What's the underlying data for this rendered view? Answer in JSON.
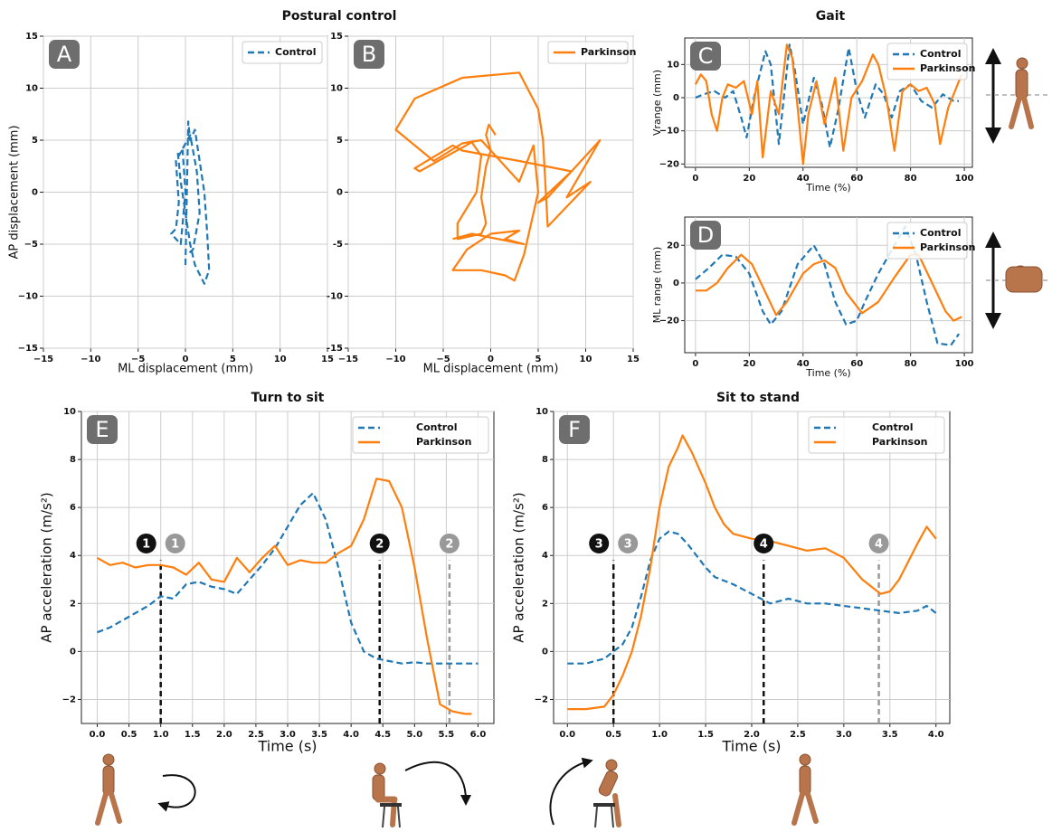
{
  "section_titles": [
    "Postural control",
    "Gait",
    "Turn to sit",
    "Sit to stand"
  ],
  "chart_data": [
    {
      "type": "line",
      "panel": "A",
      "x_label": "ML displacement (mm)",
      "y_label": "AP displacement (mm)",
      "xlim": [
        -15,
        15
      ],
      "ylim": [
        -15,
        15
      ],
      "xticks": [
        {
          "value": -15,
          "label": "−15"
        },
        {
          "value": -10,
          "label": "−10"
        },
        {
          "value": -5,
          "label": "−5"
        },
        0,
        5,
        10,
        15
      ],
      "yticks": [
        {
          "value": -15,
          "label": "−15"
        },
        {
          "value": -10,
          "label": "−10"
        },
        {
          "value": -5,
          "label": "−5"
        },
        0,
        5,
        10,
        15
      ],
      "grid": true,
      "legend": "upper right",
      "series": [
        {
          "name": "Control",
          "color": "#1f77b4",
          "dash": true,
          "x": [
            0,
            0.3,
            0.5,
            1,
            1.5,
            2,
            2.3,
            2.5,
            2,
            1,
            0.5,
            0,
            -0.5,
            -0.8,
            -0.3,
            0,
            -0.5,
            -1.5,
            -1,
            -0.7,
            -1,
            0.5,
            1.2,
            1.5,
            0.8,
            0.2
          ],
          "values": [
            -7,
            6.8,
            5,
            6,
            3,
            0,
            -4,
            -7.5,
            -8.8,
            -7,
            -5,
            -2,
            1,
            3.8,
            4,
            0,
            -5,
            -4,
            -3.5,
            -1,
            3,
            5.5,
            2,
            -2,
            -5.5,
            -6
          ]
        }
      ]
    },
    {
      "type": "line",
      "panel": "B",
      "x_label": "ML displacement (mm)",
      "xlim": [
        -15,
        15
      ],
      "ylim": [
        -15,
        15
      ],
      "xticks": [
        {
          "value": -15,
          "label": "−15"
        },
        {
          "value": -10,
          "label": "−10"
        },
        {
          "value": -5,
          "label": "−5"
        },
        0,
        5,
        10,
        15
      ],
      "yticks": [
        -15,
        -10,
        -5,
        0,
        5,
        10,
        15
      ],
      "grid": true,
      "legend": "upper right",
      "series": [
        {
          "name": "Parkinson",
          "color": "#ff7f0e",
          "dash": false,
          "x": [
            0.5,
            -0.2,
            -0.5,
            0,
            -0.5,
            -1,
            -0.5,
            -1,
            -3.5,
            -3.5,
            -1.5,
            -1,
            -2,
            -7.5,
            -8,
            -4,
            -3,
            3,
            8.5,
            5,
            6,
            11.5,
            8,
            10.5,
            6,
            5.5,
            5,
            3,
            -3,
            -8,
            -10,
            -6,
            -3,
            -1,
            0.5,
            3,
            4.5,
            5,
            4.5,
            3.5,
            2.5,
            1.5,
            -1,
            -4,
            -2.5,
            0,
            3,
            1.5,
            3.5,
            -2,
            -4
          ],
          "values": [
            5.5,
            6.5,
            5.5,
            4,
            2.5,
            -0.5,
            -3,
            -4,
            -4.5,
            -3,
            0,
            3.5,
            4.8,
            2,
            2.3,
            4.5,
            4,
            3,
            2,
            -1,
            -0.5,
            5,
            -0.5,
            1,
            -3.3,
            5,
            8,
            11.5,
            11,
            9,
            6,
            3,
            4.7,
            5,
            3.5,
            1,
            4.5,
            0,
            -2,
            -6,
            -8.5,
            -8,
            -7.5,
            -7.5,
            -5.5,
            -4,
            -3.7,
            -4.5,
            -5,
            -4,
            -4.5
          ]
        }
      ]
    },
    {
      "type": "line",
      "panel": "C",
      "x_label": "Time (%)",
      "y_label": "Vrange (mm)",
      "xlim": [
        -4,
        103
      ],
      "ylim": [
        -21,
        18
      ],
      "xticks": [
        0,
        20,
        40,
        60,
        80,
        100
      ],
      "yticks": [
        {
          "value": -20,
          "label": "−20"
        },
        {
          "value": -10,
          "label": "−10"
        },
        0,
        10
      ],
      "grid": true,
      "legend": "upper right",
      "series": [
        {
          "name": "Control",
          "color": "#1f77b4",
          "dash": true,
          "x": [
            0,
            3,
            7,
            11,
            14,
            17,
            19,
            22,
            26,
            28,
            31,
            35,
            37,
            40,
            44,
            47,
            50,
            53,
            57,
            60,
            63,
            67,
            70,
            73,
            76,
            80,
            84,
            88,
            92,
            96,
            98
          ],
          "values": [
            0,
            1,
            2,
            0,
            2,
            -6,
            -12,
            1,
            14,
            10,
            -14,
            16,
            8,
            -8,
            6,
            -2,
            -15,
            -4,
            15,
            2,
            -6,
            4,
            1,
            -6,
            2,
            4,
            -1,
            -3,
            1,
            -1,
            -1
          ]
        },
        {
          "name": "Parkinson",
          "color": "#ff7f0e",
          "dash": false,
          "x": [
            0,
            2,
            4,
            6,
            8,
            10,
            12,
            15,
            18,
            21,
            23,
            25,
            28,
            31,
            34,
            36,
            38,
            40,
            42,
            45,
            48,
            52,
            55,
            58,
            62,
            66,
            68,
            71,
            74,
            77,
            80,
            83,
            86,
            89,
            91,
            94,
            97,
            99
          ],
          "values": [
            4,
            7,
            5,
            -5,
            -10,
            0,
            4,
            3,
            5,
            -5,
            5,
            -18,
            2,
            -5,
            16,
            12,
            -3,
            -20,
            -5,
            5,
            -8,
            6,
            -16,
            0,
            5,
            13,
            10,
            0,
            -16,
            2,
            4,
            2,
            3,
            -2,
            -14,
            -3,
            3,
            7
          ]
        }
      ]
    },
    {
      "type": "line",
      "panel": "D",
      "x_label": "Time (%)",
      "y_label": "ML range (mm)",
      "xlim": [
        -4,
        103
      ],
      "ylim": [
        -37,
        35
      ],
      "xticks": [
        0,
        20,
        40,
        60,
        80,
        100
      ],
      "yticks": [
        {
          "value": -20,
          "label": "−20"
        },
        0,
        20
      ],
      "grid": true,
      "legend": "upper right",
      "series": [
        {
          "name": "Control",
          "color": "#1f77b4",
          "dash": true,
          "x": [
            0,
            5,
            10,
            15,
            20,
            25,
            28,
            32,
            38,
            44,
            48,
            52,
            56,
            60,
            63,
            68,
            74,
            78,
            82,
            86,
            90,
            95,
            98
          ],
          "values": [
            2,
            8,
            15,
            14,
            5,
            -15,
            -22,
            -15,
            10,
            20,
            10,
            -10,
            -22,
            -20,
            -10,
            5,
            20,
            30,
            15,
            -10,
            -32,
            -33,
            -27
          ]
        },
        {
          "name": "Parkinson",
          "color": "#ff7f0e",
          "dash": false,
          "x": [
            0,
            4,
            8,
            12,
            17,
            21,
            26,
            30,
            34,
            40,
            44,
            48,
            52,
            56,
            62,
            68,
            74,
            80,
            83,
            88,
            93,
            96,
            99
          ],
          "values": [
            -4,
            -4,
            0,
            8,
            15,
            10,
            -5,
            -17,
            -10,
            5,
            10,
            12,
            8,
            -5,
            -16,
            -10,
            3,
            15,
            15,
            0,
            -15,
            -20,
            -18
          ]
        }
      ]
    },
    {
      "type": "line",
      "panel": "E",
      "x_label": "Time (s)",
      "y_label": "AP acceleration (m/s²)",
      "xlim": [
        -0.25,
        6.25
      ],
      "ylim": [
        -3,
        10
      ],
      "xticks": [
        {
          "value": 0,
          "label": "0.0"
        },
        0.5,
        {
          "value": 1,
          "label": "1.0"
        },
        1.5,
        {
          "value": 2,
          "label": "2.0"
        },
        2.5,
        {
          "value": 3,
          "label": "3.0"
        },
        3.5,
        {
          "value": 4,
          "label": "4.0"
        },
        4.5,
        {
          "value": 5,
          "label": "5.0"
        },
        5.5,
        {
          "value": 6,
          "label": "6.0"
        }
      ],
      "yticks": [
        {
          "value": -2,
          "label": "−2"
        },
        0,
        2,
        4,
        6,
        8,
        10
      ],
      "grid": true,
      "legend": "upper right",
      "series": [
        {
          "name": "Control",
          "color": "#1f77b4",
          "dash": true,
          "x": [
            0,
            0.2,
            0.4,
            0.6,
            0.8,
            1,
            1.2,
            1.4,
            1.6,
            1.8,
            2,
            2.2,
            2.4,
            2.6,
            2.8,
            3,
            3.2,
            3.4,
            3.6,
            3.8,
            4,
            4.2,
            4.4,
            4.6,
            4.8,
            5,
            5.2,
            5.4,
            5.6,
            5.8,
            6
          ],
          "values": [
            0.8,
            1,
            1.3,
            1.6,
            1.9,
            2.3,
            2.2,
            2.8,
            2.9,
            2.7,
            2.6,
            2.4,
            3,
            3.6,
            4.3,
            5.2,
            6.1,
            6.6,
            5.5,
            3.5,
            1.2,
            0,
            -0.3,
            -0.4,
            -0.5,
            -0.45,
            -0.5,
            -0.5,
            -0.5,
            -0.5,
            -0.5
          ]
        },
        {
          "name": "Parkinson",
          "color": "#ff7f0e",
          "dash": false,
          "x": [
            0,
            0.2,
            0.4,
            0.6,
            0.8,
            1,
            1.2,
            1.4,
            1.6,
            1.8,
            2,
            2.2,
            2.4,
            2.6,
            2.8,
            3,
            3.2,
            3.4,
            3.6,
            3.8,
            4,
            4.2,
            4.4,
            4.6,
            4.8,
            5,
            5.2,
            5.4,
            5.6,
            5.8,
            5.9
          ],
          "values": [
            3.9,
            3.6,
            3.7,
            3.5,
            3.6,
            3.6,
            3.5,
            3.2,
            3.7,
            3,
            2.9,
            3.9,
            3.3,
            3.9,
            4.4,
            3.6,
            3.8,
            3.7,
            3.7,
            4.1,
            4.4,
            5.5,
            7.2,
            7.1,
            6,
            3.5,
            0.5,
            -2.2,
            -2.5,
            -2.6,
            -2.6
          ]
        }
      ],
      "event_lines": [
        {
          "x": 1,
          "color": "#111111"
        },
        {
          "x": 4.45,
          "color": "#111111"
        },
        {
          "x": 5.55,
          "color": "#999999"
        }
      ],
      "event_markers": [
        {
          "x": 1,
          "label": "1",
          "color": "#111111"
        },
        {
          "x": 1,
          "label": "1",
          "color": "#999999"
        },
        {
          "x": 4.45,
          "label": "2",
          "color": "#111111"
        },
        {
          "x": 5.55,
          "label": "2",
          "color": "#999999"
        }
      ]
    },
    {
      "type": "line",
      "panel": "F",
      "x_label": "Time (s)",
      "y_label": "AP acceleration (m/s²)",
      "xlim": [
        -0.15,
        4.15
      ],
      "ylim": [
        -3,
        10
      ],
      "xticks": [
        {
          "value": 0,
          "label": "0.0"
        },
        0.5,
        {
          "value": 1,
          "label": "1.0"
        },
        1.5,
        {
          "value": 2,
          "label": "2.0"
        },
        2.5,
        {
          "value": 3,
          "label": "3.0"
        },
        3.5,
        {
          "value": 4,
          "label": "4.0"
        }
      ],
      "yticks": [
        {
          "value": -2,
          "label": "−2"
        },
        0,
        2,
        4,
        6,
        8,
        10
      ],
      "grid": true,
      "legend": "upper right",
      "series": [
        {
          "name": "Control",
          "color": "#1f77b4",
          "dash": true,
          "x": [
            0,
            0.2,
            0.4,
            0.5,
            0.6,
            0.7,
            0.8,
            0.9,
            1,
            1.1,
            1.2,
            1.3,
            1.4,
            1.5,
            1.6,
            1.8,
            2,
            2.2,
            2.4,
            2.6,
            2.8,
            3,
            3.2,
            3.4,
            3.6,
            3.8,
            3.9,
            4
          ],
          "values": [
            -0.5,
            -0.5,
            -0.3,
            0,
            0.3,
            1,
            2.3,
            3.8,
            4.7,
            5,
            4.9,
            4.5,
            4,
            3.5,
            3.1,
            2.8,
            2.4,
            2,
            2.2,
            2,
            2,
            1.9,
            1.8,
            1.7,
            1.6,
            1.7,
            1.9,
            1.6
          ]
        },
        {
          "name": "Parkinson",
          "color": "#ff7f0e",
          "dash": false,
          "x": [
            0,
            0.2,
            0.4,
            0.5,
            0.6,
            0.7,
            0.8,
            0.9,
            1,
            1.1,
            1.2,
            1.25,
            1.35,
            1.5,
            1.6,
            1.7,
            1.8,
            2,
            2.2,
            2.4,
            2.6,
            2.8,
            3,
            3.2,
            3.4,
            3.5,
            3.6,
            3.8,
            3.9,
            4
          ],
          "values": [
            -2.4,
            -2.4,
            -2.3,
            -1.8,
            -1,
            0,
            1.5,
            3.5,
            6,
            7.7,
            8.5,
            9,
            8.3,
            7,
            6,
            5.3,
            4.9,
            4.7,
            4.6,
            4.4,
            4.2,
            4.3,
            3.9,
            3,
            2.4,
            2.5,
            3,
            4.5,
            5.2,
            4.7
          ]
        }
      ],
      "event_lines": [
        {
          "x": 0.5,
          "color": "#111111"
        },
        {
          "x": 2.13,
          "color": "#111111"
        },
        {
          "x": 3.38,
          "color": "#999999"
        }
      ],
      "event_markers": [
        {
          "x": 0.5,
          "label": "3",
          "color": "#111111"
        },
        {
          "x": 0.5,
          "label": "3",
          "color": "#999999"
        },
        {
          "x": 2.13,
          "label": "4",
          "color": "#111111"
        },
        {
          "x": 3.38,
          "label": "4",
          "color": "#999999"
        }
      ]
    }
  ]
}
